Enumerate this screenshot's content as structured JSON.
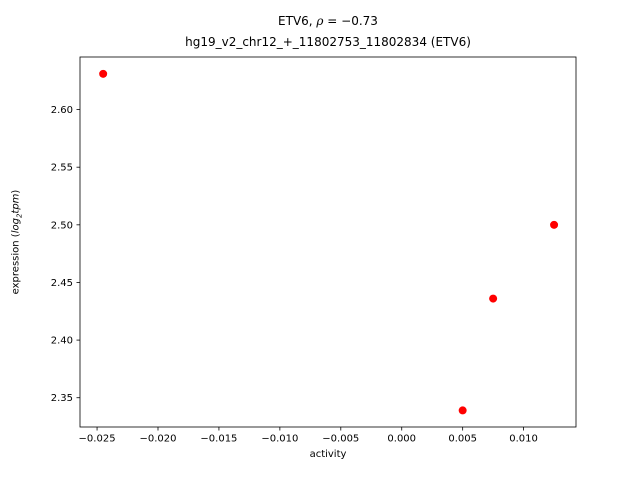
{
  "chart_data": {
    "type": "scatter",
    "title_line1": {
      "prefix": "ETV6, ",
      "rho": "ρ",
      "suffix": " = −0.73"
    },
    "title_line2": "hg19_v2_chr12_+_11802753_11802834 (ETV6)",
    "xlabel": "activity",
    "ylabel": {
      "prefix": "expression (",
      "math": "log",
      "sub": "2",
      "math2": "tpm",
      "suffix": ")"
    },
    "xlim": [
      -0.0264,
      0.0143
    ],
    "ylim": [
      2.3246,
      2.6456
    ],
    "grid": false,
    "legend": null,
    "marker_color": "#ff0000",
    "xticks": {
      "values": [
        -0.025,
        -0.02,
        -0.015,
        -0.01,
        -0.005,
        0.0,
        0.005,
        0.01
      ],
      "labels": [
        "−0.025",
        "−0.020",
        "−0.015",
        "−0.010",
        "−0.005",
        "0.000",
        "0.005",
        "0.010"
      ]
    },
    "yticks": {
      "values": [
        2.35,
        2.4,
        2.45,
        2.5,
        2.55,
        2.6
      ],
      "labels": [
        "2.35",
        "2.40",
        "2.45",
        "2.50",
        "2.55",
        "2.60"
      ]
    },
    "points": [
      {
        "x": -0.0245,
        "y": 2.631
      },
      {
        "x": 0.0125,
        "y": 2.5
      },
      {
        "x": 0.0075,
        "y": 2.436
      },
      {
        "x": 0.005,
        "y": 2.339
      }
    ]
  }
}
